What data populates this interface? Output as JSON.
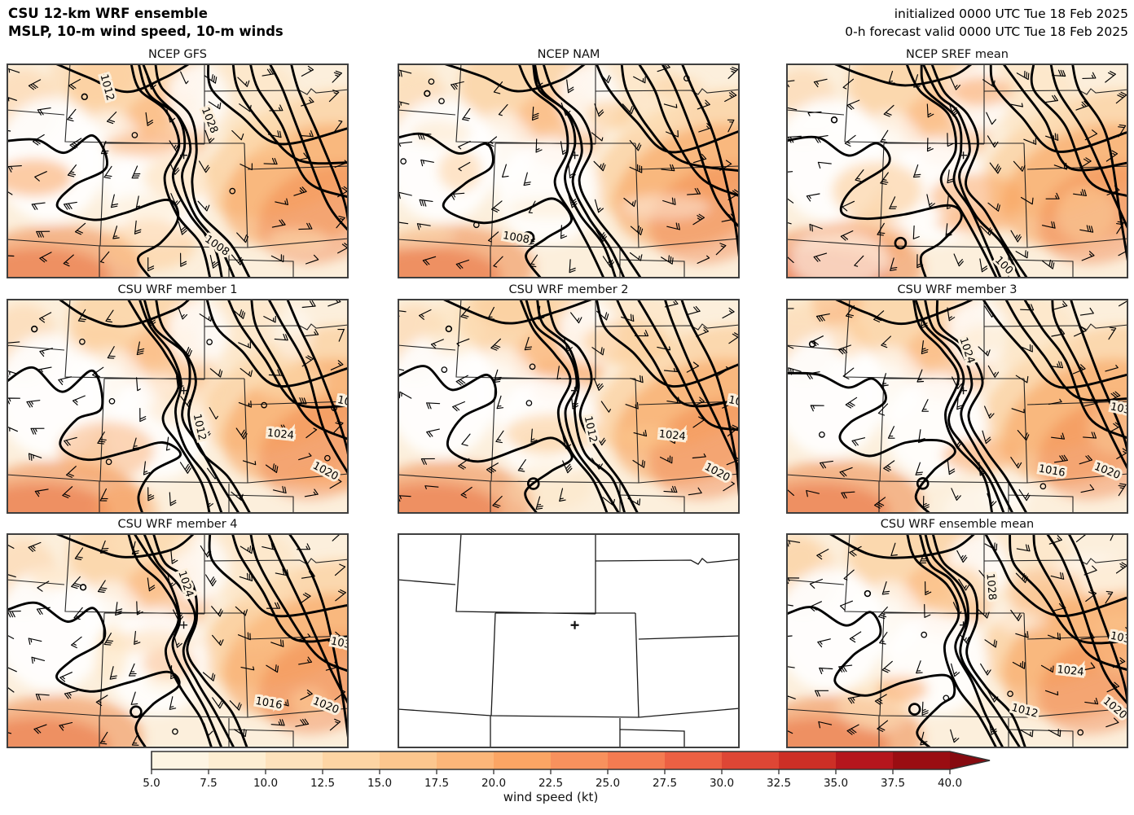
{
  "header": {
    "title_line1": "CSU 12-km WRF ensemble",
    "title_line2": "MSLP, 10-m wind speed, 10-m winds",
    "init_line": "initialized 0000 UTC Tue 18 Feb 2025",
    "valid_line": "0-h forecast valid 0000 UTC Tue 18 Feb 2025"
  },
  "chart_data": {
    "type": "heatmap",
    "title": "CSU 12-km WRF ensemble — MSLP, 10-m wind speed, 10-m winds",
    "grid": {
      "rows": 3,
      "cols": 3
    },
    "map_region": "Colorado-centered domain with surrounding state borders (WY, NE, CO, KS, UT, AZ, NM, OK/TX panhandle)",
    "station_marker": {
      "symbol": "+",
      "x": 0.518,
      "y": 0.427
    },
    "panels": [
      {
        "title": "NCEP GFS",
        "empty": false,
        "seed": 11,
        "contour_labels": [
          {
            "text": "1012",
            "x": 0.285,
            "y": 0.115,
            "rot": 75
          },
          {
            "text": "1028",
            "x": 0.585,
            "y": 0.27,
            "rot": 68
          },
          {
            "text": "1008",
            "x": 0.61,
            "y": 0.86,
            "rot": 35
          }
        ]
      },
      {
        "title": "NCEP NAM",
        "empty": false,
        "seed": 22,
        "contour_labels": [
          {
            "text": "1008",
            "x": 0.345,
            "y": 0.825,
            "rot": 10
          }
        ]
      },
      {
        "title": "NCEP SREF mean",
        "empty": false,
        "seed": 33,
        "contour_labels": [
          {
            "text": "100",
            "x": 0.63,
            "y": 0.95,
            "rot": 45
          }
        ]
      },
      {
        "title": "CSU WRF member 1",
        "empty": false,
        "seed": 44,
        "contour_labels": [
          {
            "text": "1012",
            "x": 0.555,
            "y": 0.6,
            "rot": 78
          },
          {
            "text": "1024",
            "x": 0.8,
            "y": 0.645,
            "rot": 6
          },
          {
            "text": "1020",
            "x": 0.928,
            "y": 0.815,
            "rot": 28
          },
          {
            "text": "10",
            "x": 0.985,
            "y": 0.49,
            "rot": 12
          }
        ]
      },
      {
        "title": "CSU WRF member 2",
        "empty": false,
        "seed": 55,
        "contour_labels": [
          {
            "text": "1012",
            "x": 0.555,
            "y": 0.61,
            "rot": 78
          },
          {
            "text": "1024",
            "x": 0.802,
            "y": 0.65,
            "rot": 6
          },
          {
            "text": "1020",
            "x": 0.93,
            "y": 0.82,
            "rot": 28
          },
          {
            "text": "10",
            "x": 0.985,
            "y": 0.49,
            "rot": 12
          }
        ]
      },
      {
        "title": "CSU WRF member 3",
        "empty": false,
        "seed": 66,
        "contour_labels": [
          {
            "text": "1024",
            "x": 0.52,
            "y": 0.245,
            "rot": 72
          },
          {
            "text": "103",
            "x": 0.975,
            "y": 0.525,
            "rot": 12
          },
          {
            "text": "1016",
            "x": 0.775,
            "y": 0.815,
            "rot": 10
          },
          {
            "text": "1020",
            "x": 0.935,
            "y": 0.815,
            "rot": 22
          }
        ]
      },
      {
        "title": "CSU WRF member 4",
        "empty": false,
        "seed": 77,
        "contour_labels": [
          {
            "text": "1024",
            "x": 0.515,
            "y": 0.24,
            "rot": 72
          },
          {
            "text": "103",
            "x": 0.975,
            "y": 0.525,
            "rot": 12
          },
          {
            "text": "1016",
            "x": 0.765,
            "y": 0.805,
            "rot": 10
          },
          {
            "text": "1020",
            "x": 0.93,
            "y": 0.815,
            "rot": 22
          }
        ]
      },
      {
        "title": "",
        "empty": true,
        "seed": 0,
        "contour_labels": []
      },
      {
        "title": "CSU WRF ensemble mean",
        "empty": false,
        "seed": 99,
        "contour_labels": [
          {
            "text": "1028",
            "x": 0.59,
            "y": 0.25,
            "rot": 85
          },
          {
            "text": "103",
            "x": 0.975,
            "y": 0.5,
            "rot": 12
          },
          {
            "text": "1024",
            "x": 0.83,
            "y": 0.655,
            "rot": 6
          },
          {
            "text": "1012",
            "x": 0.695,
            "y": 0.84,
            "rot": 15
          },
          {
            "text": "1020",
            "x": 0.955,
            "y": 0.825,
            "rot": 40
          }
        ]
      }
    ],
    "colorbar": {
      "label": "wind speed (kt)",
      "ticks": [
        5.0,
        7.5,
        10.0,
        12.5,
        15.0,
        17.5,
        20.0,
        22.5,
        25.0,
        27.5,
        30.0,
        32.5,
        35.0,
        37.5,
        40.0
      ],
      "tick_labels": [
        "5.0",
        "7.5",
        "10.0",
        "12.5",
        "15.0",
        "17.5",
        "20.0",
        "22.5",
        "25.0",
        "27.5",
        "30.0",
        "32.5",
        "35.0",
        "37.5",
        "40.0"
      ],
      "extend": "max",
      "segment_colors": [
        "#fdf5e3",
        "#fdeed2",
        "#fde2bc",
        "#fdd5a4",
        "#fcc68e",
        "#fcb679",
        "#fba564",
        "#f8915d",
        "#f47b51",
        "#ec6043",
        "#de4635",
        "#cd2f26",
        "#b5161d",
        "#9a0d12"
      ],
      "arrow_color": "#870a10"
    }
  }
}
